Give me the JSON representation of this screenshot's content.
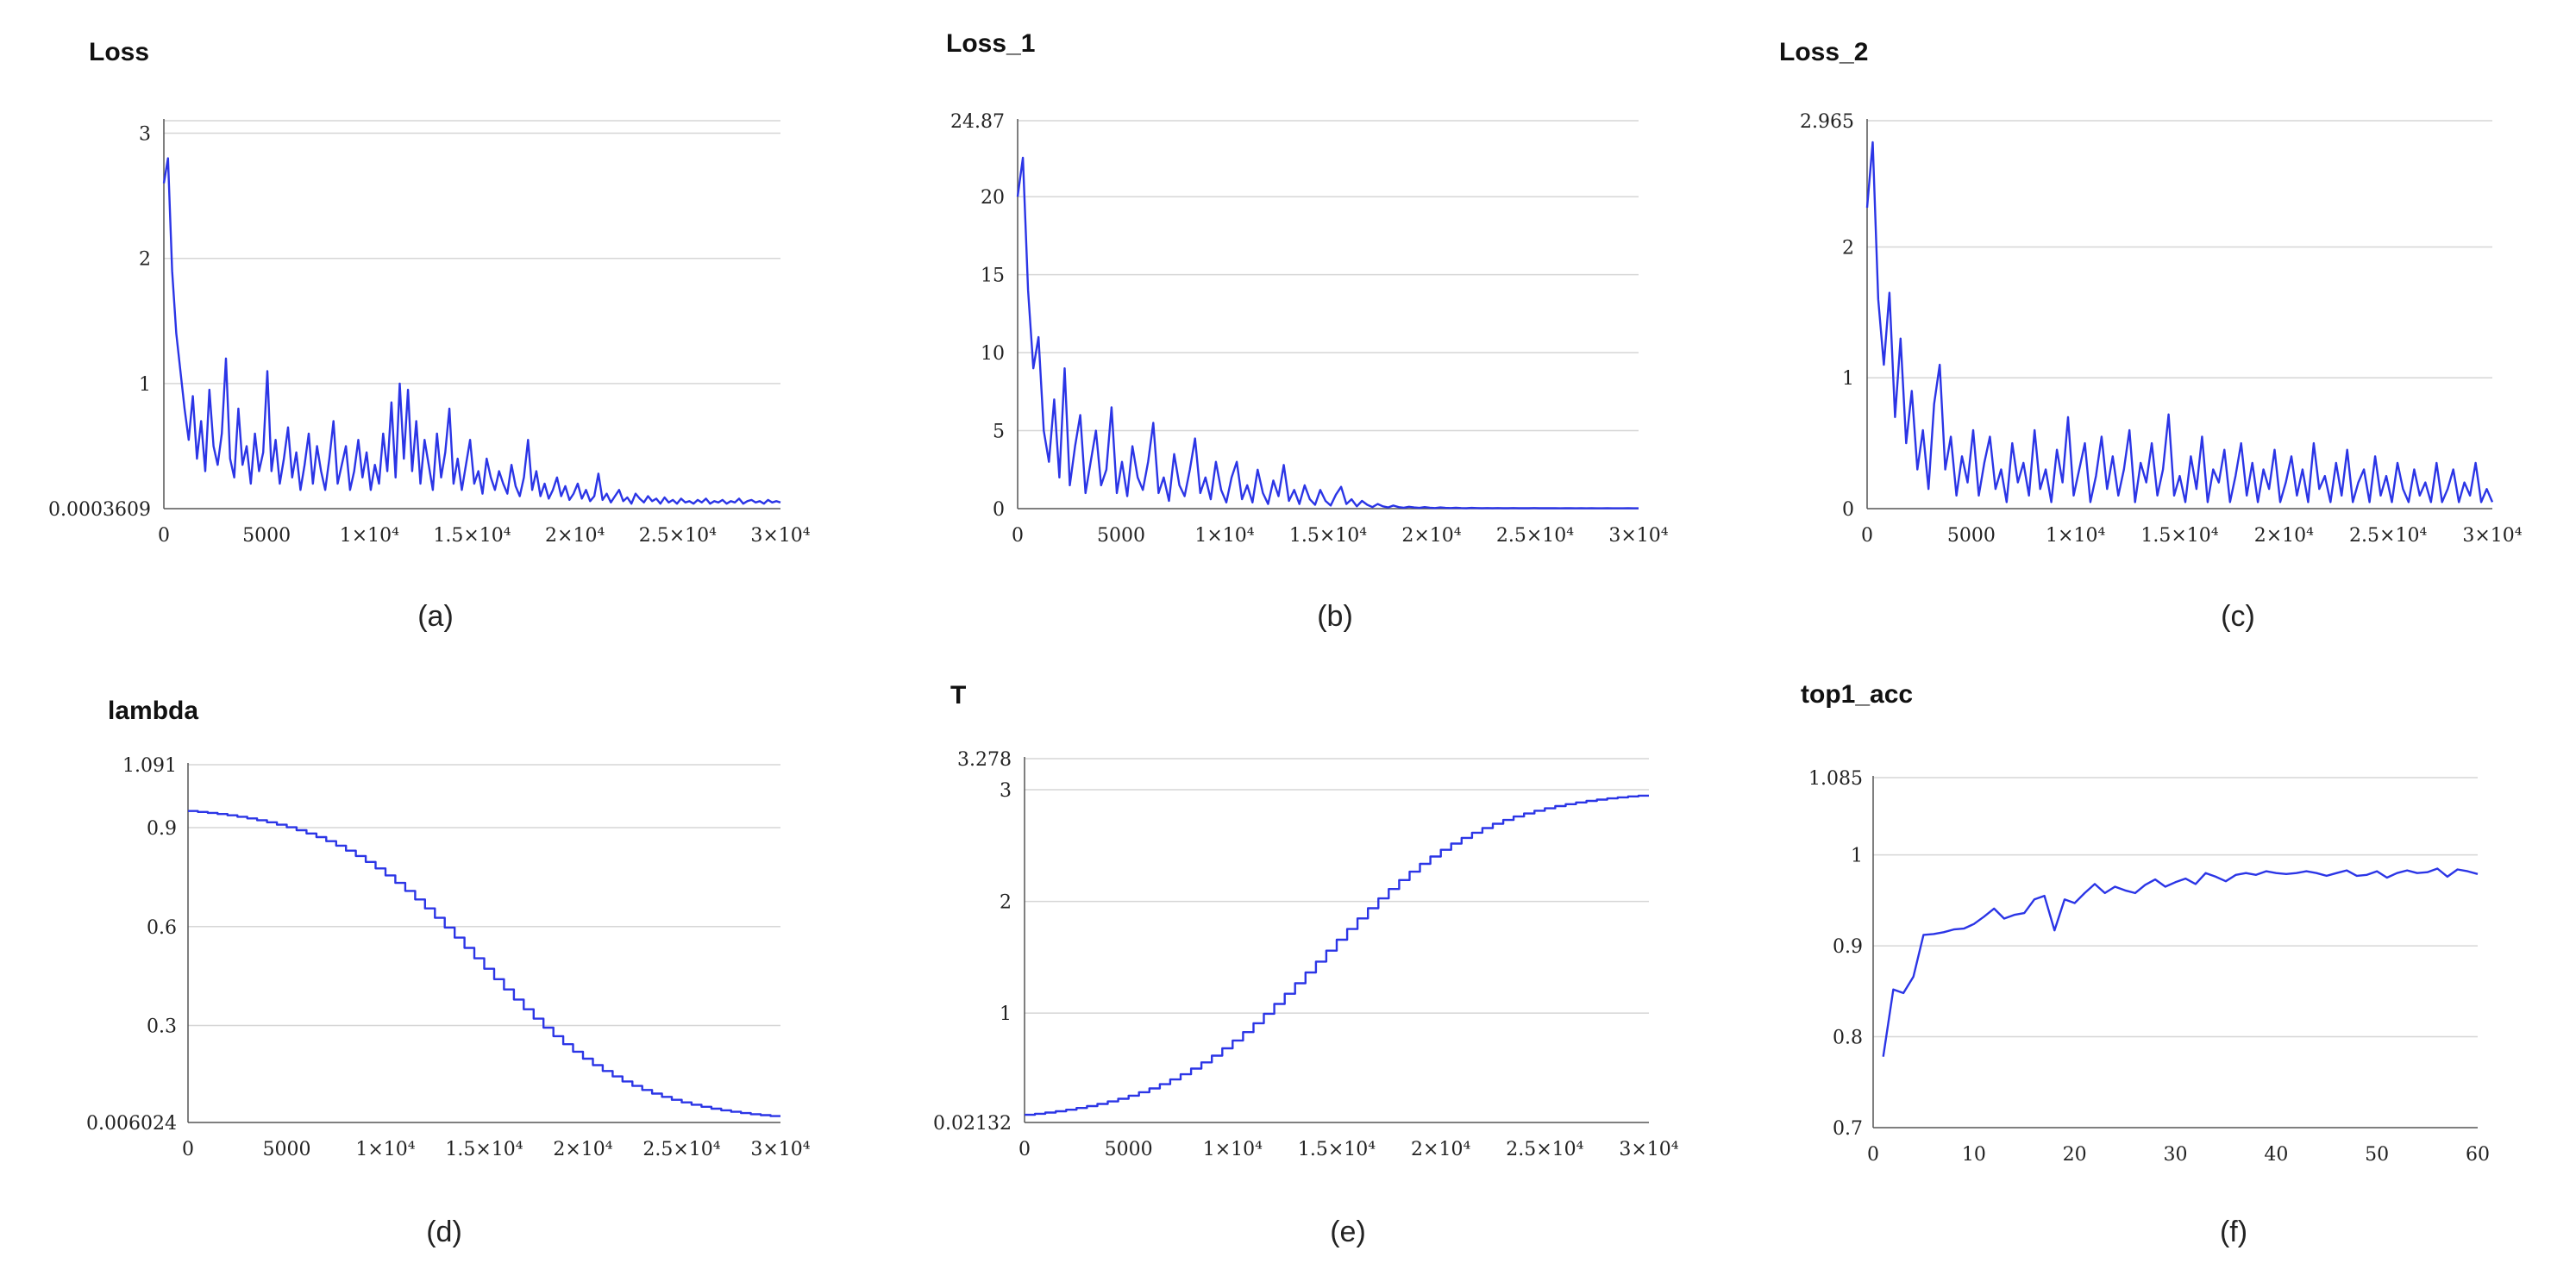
{
  "chart_data": [
    {
      "type": "line",
      "id": "a",
      "title": "Loss",
      "caption": "(a)",
      "xlim": [
        0,
        30000
      ],
      "ylim": [
        0.0003609,
        3.1
      ],
      "xticks": [
        0,
        5000,
        10000,
        15000,
        20000,
        25000,
        30000
      ],
      "xtick_labels": [
        "0",
        "5000",
        "1×10⁴",
        "1.5×10⁴",
        "2×10⁴",
        "2.5×10⁴",
        "3×10⁴"
      ],
      "yticks": [
        0.0003609,
        1,
        2,
        3
      ],
      "ytick_labels": [
        "0.0003609",
        "1",
        "2",
        "3"
      ],
      "grid_y": [
        1,
        2,
        3,
        3.1
      ],
      "series": [
        {
          "name": "Loss",
          "values": [
            2.6,
            2.8,
            1.9,
            1.4,
            1.1,
            0.8,
            0.55,
            0.9,
            0.4,
            0.7,
            0.3,
            0.95,
            0.5,
            0.35,
            0.6,
            1.2,
            0.4,
            0.25,
            0.8,
            0.35,
            0.5,
            0.2,
            0.6,
            0.3,
            0.45,
            1.1,
            0.3,
            0.55,
            0.2,
            0.4,
            0.65,
            0.25,
            0.45,
            0.15,
            0.35,
            0.6,
            0.2,
            0.5,
            0.3,
            0.15,
            0.4,
            0.7,
            0.2,
            0.35,
            0.5,
            0.15,
            0.3,
            0.55,
            0.25,
            0.45,
            0.15,
            0.35,
            0.2,
            0.6,
            0.3,
            0.85,
            0.25,
            1.0,
            0.4,
            0.95,
            0.3,
            0.7,
            0.2,
            0.55,
            0.35,
            0.15,
            0.6,
            0.25,
            0.45,
            0.8,
            0.2,
            0.4,
            0.15,
            0.35,
            0.55,
            0.2,
            0.3,
            0.12,
            0.4,
            0.25,
            0.15,
            0.3,
            0.2,
            0.12,
            0.35,
            0.18,
            0.1,
            0.25,
            0.55,
            0.15,
            0.3,
            0.1,
            0.2,
            0.08,
            0.15,
            0.25,
            0.1,
            0.18,
            0.07,
            0.12,
            0.2,
            0.08,
            0.15,
            0.06,
            0.1,
            0.28,
            0.07,
            0.12,
            0.05,
            0.1,
            0.15,
            0.06,
            0.09,
            0.04,
            0.12,
            0.08,
            0.05,
            0.1,
            0.06,
            0.08,
            0.04,
            0.09,
            0.05,
            0.07,
            0.04,
            0.08,
            0.05,
            0.06,
            0.04,
            0.07,
            0.05,
            0.08,
            0.04,
            0.06,
            0.05,
            0.07,
            0.04,
            0.06,
            0.05,
            0.08,
            0.04,
            0.06,
            0.07,
            0.05,
            0.06,
            0.04,
            0.07,
            0.05,
            0.06,
            0.05
          ]
        }
      ]
    },
    {
      "type": "line",
      "id": "b",
      "title": "Loss_1",
      "caption": "(b)",
      "xlim": [
        0,
        30000
      ],
      "ylim": [
        0,
        24.87
      ],
      "xticks": [
        0,
        5000,
        10000,
        15000,
        20000,
        25000,
        30000
      ],
      "xtick_labels": [
        "0",
        "5000",
        "1×10⁴",
        "1.5×10⁴",
        "2×10⁴",
        "2.5×10⁴",
        "3×10⁴"
      ],
      "yticks": [
        0,
        5,
        10,
        15,
        20,
        24.87
      ],
      "ytick_labels": [
        "0",
        "5",
        "10",
        "15",
        "20",
        "24.87"
      ],
      "grid_y": [
        5,
        10,
        15,
        20,
        24.87
      ],
      "series": [
        {
          "name": "Loss_1",
          "values": [
            20,
            22.5,
            14,
            9,
            11,
            5,
            3,
            7,
            2,
            9,
            1.5,
            4,
            6,
            1,
            3,
            5,
            1.5,
            2.5,
            6.5,
            1,
            3,
            0.8,
            4,
            2,
            1.2,
            3,
            5.5,
            1,
            2,
            0.5,
            3.5,
            1.5,
            0.8,
            2.5,
            4.5,
            1,
            2,
            0.6,
            3,
            1.2,
            0.4,
            2,
            3,
            0.6,
            1.5,
            0.4,
            2.5,
            1,
            0.3,
            1.8,
            0.8,
            2.8,
            0.5,
            1.2,
            0.3,
            1.5,
            0.6,
            0.25,
            1.2,
            0.5,
            0.2,
            0.9,
            1.4,
            0.3,
            0.6,
            0.15,
            0.5,
            0.25,
            0.1,
            0.3,
            0.15,
            0.08,
            0.2,
            0.1,
            0.06,
            0.12,
            0.08,
            0.05,
            0.1,
            0.06,
            0.04,
            0.08,
            0.05,
            0.04,
            0.06,
            0.04,
            0.03,
            0.05,
            0.04,
            0.03,
            0.04,
            0.03,
            0.04,
            0.03,
            0.03,
            0.04,
            0.03,
            0.03,
            0.03,
            0.04,
            0.03,
            0.03,
            0.03,
            0.03,
            0.02,
            0.03,
            0.03,
            0.02,
            0.03,
            0.02,
            0.03,
            0.02,
            0.02,
            0.03,
            0.02,
            0.02,
            0.02,
            0.03,
            0.02,
            0.02
          ]
        }
      ]
    },
    {
      "type": "line",
      "id": "c",
      "title": "Loss_2",
      "caption": "(c)",
      "xlim": [
        0,
        30000
      ],
      "ylim": [
        0,
        2.965
      ],
      "xticks": [
        0,
        5000,
        10000,
        15000,
        20000,
        25000,
        30000
      ],
      "xtick_labels": [
        "0",
        "5000",
        "1×10⁴",
        "1.5×10⁴",
        "2×10⁴",
        "2.5×10⁴",
        "3×10⁴"
      ],
      "yticks": [
        0,
        1,
        2,
        2.965
      ],
      "ytick_labels": [
        "0",
        "1",
        "2",
        "2.965"
      ],
      "grid_y": [
        1,
        2,
        2.965
      ],
      "series": [
        {
          "name": "Loss_2",
          "values": [
            2.3,
            2.8,
            1.6,
            1.1,
            1.65,
            0.7,
            1.3,
            0.5,
            0.9,
            0.3,
            0.6,
            0.15,
            0.8,
            1.1,
            0.3,
            0.55,
            0.1,
            0.4,
            0.2,
            0.6,
            0.1,
            0.35,
            0.55,
            0.15,
            0.3,
            0.05,
            0.5,
            0.2,
            0.35,
            0.1,
            0.6,
            0.15,
            0.3,
            0.05,
            0.45,
            0.2,
            0.7,
            0.1,
            0.3,
            0.5,
            0.05,
            0.25,
            0.55,
            0.15,
            0.4,
            0.1,
            0.3,
            0.6,
            0.05,
            0.35,
            0.2,
            0.5,
            0.1,
            0.3,
            0.72,
            0.1,
            0.25,
            0.05,
            0.4,
            0.15,
            0.55,
            0.05,
            0.3,
            0.2,
            0.45,
            0.05,
            0.25,
            0.5,
            0.1,
            0.35,
            0.05,
            0.3,
            0.15,
            0.45,
            0.05,
            0.2,
            0.4,
            0.1,
            0.3,
            0.05,
            0.5,
            0.15,
            0.25,
            0.05,
            0.35,
            0.1,
            0.45,
            0.05,
            0.2,
            0.3,
            0.05,
            0.4,
            0.1,
            0.25,
            0.05,
            0.35,
            0.15,
            0.05,
            0.3,
            0.1,
            0.2,
            0.05,
            0.35,
            0.05,
            0.15,
            0.3,
            0.05,
            0.2,
            0.1,
            0.35,
            0.05,
            0.15,
            0.05
          ]
        }
      ]
    },
    {
      "type": "line",
      "id": "d",
      "title": "lambda",
      "caption": "(d)",
      "xlim": [
        0,
        30000
      ],
      "ylim": [
        0.006024,
        1.091
      ],
      "xticks": [
        0,
        5000,
        10000,
        15000,
        20000,
        25000,
        30000
      ],
      "xtick_labels": [
        "0",
        "5000",
        "1×10⁴",
        "1.5×10⁴",
        "2×10⁴",
        "2.5×10⁴",
        "3×10⁴"
      ],
      "yticks": [
        0.006024,
        0.3,
        0.6,
        0.9,
        1.091
      ],
      "ytick_labels": [
        "0.006024",
        "0.3",
        "0.6",
        "0.9",
        "1.091"
      ],
      "grid_y": [
        0.3,
        0.6,
        0.9,
        1.091
      ],
      "series": [
        {
          "name": "lambda",
          "steps": 60,
          "x_start": 0,
          "x_end": 30000,
          "curve": "sigmoid-decay",
          "y_start": 0.97,
          "y_end": 0.006024,
          "midpoint": 15000
        }
      ]
    },
    {
      "type": "line",
      "id": "e",
      "title": "T",
      "caption": "(e)",
      "xlim": [
        0,
        30000
      ],
      "ylim": [
        0.02132,
        3.278
      ],
      "xticks": [
        0,
        5000,
        10000,
        15000,
        20000,
        25000,
        30000
      ],
      "xtick_labels": [
        "0",
        "5000",
        "1×10⁴",
        "1.5×10⁴",
        "2×10⁴",
        "2.5×10⁴",
        "3×10⁴"
      ],
      "yticks": [
        0.02132,
        1,
        2,
        3,
        3.278
      ],
      "ytick_labels": [
        "0.02132",
        "1",
        "2",
        "3",
        "3.278"
      ],
      "grid_y": [
        1,
        2,
        3,
        3.278
      ],
      "series": [
        {
          "name": "T",
          "steps": 60,
          "x_start": 0,
          "x_end": 30000,
          "curve": "sigmoid-growth",
          "y_start": 0.02132,
          "y_end": 3.0,
          "midpoint": 14500
        }
      ]
    },
    {
      "type": "line",
      "id": "f",
      "title": "top1_acc",
      "caption": "(f)",
      "xlim": [
        0,
        60
      ],
      "ylim": [
        0.7,
        1.085
      ],
      "xticks": [
        0,
        10,
        20,
        30,
        40,
        50,
        60
      ],
      "xtick_labels": [
        "0",
        "10",
        "20",
        "30",
        "40",
        "50",
        "60"
      ],
      "yticks": [
        0.7,
        0.8,
        0.9,
        1,
        1.085
      ],
      "ytick_labels": [
        "0.7",
        "0.8",
        "0.9",
        "1",
        "1.085"
      ],
      "grid_y": [
        0.8,
        0.9,
        1,
        1.085
      ],
      "series": [
        {
          "name": "top1_acc",
          "x": [
            1,
            2,
            3,
            4,
            5,
            6,
            7,
            8,
            9,
            10,
            11,
            12,
            13,
            14,
            15,
            16,
            17,
            18,
            19,
            20,
            21,
            22,
            23,
            24,
            25,
            26,
            27,
            28,
            29,
            30,
            31,
            32,
            33,
            34,
            35,
            36,
            37,
            38,
            39,
            40,
            41,
            42,
            43,
            44,
            45,
            46,
            47,
            48,
            49,
            50,
            51,
            52,
            53,
            54,
            55,
            56,
            57,
            58,
            59,
            60
          ],
          "values": [
            0.778,
            0.852,
            0.848,
            0.866,
            0.912,
            0.913,
            0.915,
            0.918,
            0.919,
            0.924,
            0.932,
            0.941,
            0.93,
            0.934,
            0.936,
            0.951,
            0.955,
            0.917,
            0.951,
            0.947,
            0.958,
            0.968,
            0.958,
            0.965,
            0.961,
            0.958,
            0.967,
            0.973,
            0.965,
            0.97,
            0.974,
            0.968,
            0.98,
            0.976,
            0.971,
            0.978,
            0.98,
            0.978,
            0.982,
            0.98,
            0.979,
            0.98,
            0.982,
            0.98,
            0.977,
            0.98,
            0.983,
            0.977,
            0.978,
            0.982,
            0.975,
            0.98,
            0.983,
            0.98,
            0.981,
            0.985,
            0.976,
            0.984,
            0.982,
            0.979
          ]
        }
      ]
    }
  ]
}
